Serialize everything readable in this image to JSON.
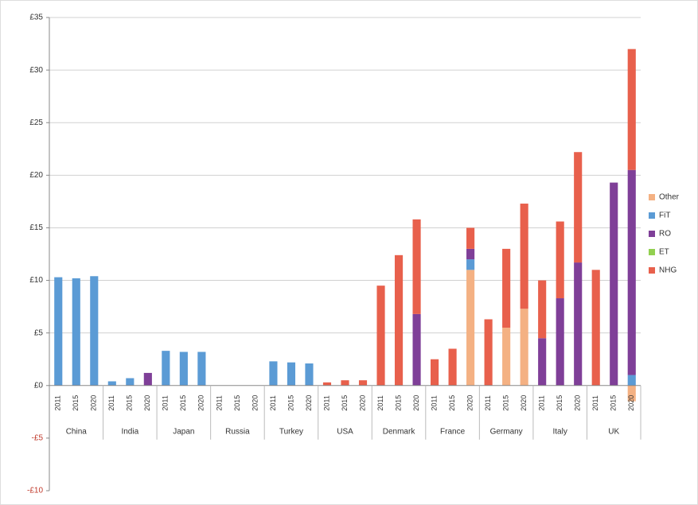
{
  "chart_data": {
    "type": "stacked-bar",
    "groups": [
      "China",
      "India",
      "Japan",
      "Russia",
      "Turkey",
      "USA",
      "Denmark",
      "France",
      "Germany",
      "Italy",
      "UK"
    ],
    "categories": [
      "2011",
      "2015",
      "2020",
      "2011",
      "2015",
      "2020",
      "2011",
      "2015",
      "2020",
      "2011",
      "2015",
      "2020",
      "2011",
      "2015",
      "2020",
      "2011",
      "2015",
      "2020",
      "2011",
      "2015",
      "2020",
      "2011",
      "2015",
      "2020",
      "2011",
      "2015",
      "2020",
      "2011",
      "2015",
      "2020",
      "2011",
      "2015",
      "2020"
    ],
    "series": [
      {
        "name": "Other",
        "color": "#f4b183",
        "values": [
          0,
          0,
          0,
          0,
          0,
          0,
          0,
          0,
          0,
          0,
          0,
          0,
          0,
          0,
          0,
          0,
          0,
          0,
          0,
          0,
          0,
          0,
          0,
          11,
          0,
          5.5,
          7.3,
          0,
          0,
          0,
          0,
          0,
          -1.5
        ]
      },
      {
        "name": "FiT",
        "color": "#5b9bd5",
        "values": [
          10.3,
          10.2,
          10.4,
          0.4,
          0.7,
          0,
          3.3,
          3.2,
          3.2,
          0,
          0,
          0,
          2.3,
          2.2,
          2.1,
          0,
          0,
          0,
          0,
          0,
          0,
          0,
          0,
          1,
          0,
          0,
          0,
          0,
          0,
          0,
          0,
          0,
          1
        ]
      },
      {
        "name": "RO",
        "color": "#7f3f98",
        "values": [
          0,
          0,
          0,
          0,
          0,
          1.2,
          0,
          0,
          0,
          0,
          0,
          0,
          0,
          0,
          0,
          0,
          0,
          0,
          0,
          0,
          6.8,
          0,
          0,
          1,
          0,
          0,
          0,
          4.5,
          8.3,
          11.7,
          0,
          19.3,
          19.5
        ]
      },
      {
        "name": "ET",
        "color": "#92d050",
        "values": [
          0,
          0,
          0,
          0,
          0,
          0,
          0,
          0,
          0,
          0,
          0,
          0,
          0,
          0,
          0,
          0,
          0,
          0,
          0,
          0,
          0,
          0,
          0,
          0,
          0,
          0,
          0,
          0,
          0,
          0,
          0,
          0,
          0
        ]
      },
      {
        "name": "NHG",
        "color": "#e8604c",
        "values": [
          0,
          0,
          0,
          0,
          0,
          0,
          0,
          0,
          0,
          0,
          0,
          0,
          0,
          0,
          0,
          0.3,
          0.5,
          0.5,
          9.5,
          12.4,
          9,
          2.5,
          3.5,
          2,
          6.3,
          7.5,
          10,
          5.5,
          7.3,
          10.5,
          11,
          0,
          11.5
        ]
      }
    ],
    "ylim": [
      -10,
      35
    ],
    "yticks": [
      {
        "value": -10,
        "label": "-£10"
      },
      {
        "value": -5,
        "label": "-£5"
      },
      {
        "value": 0,
        "label": "£0"
      },
      {
        "value": 5,
        "label": "£5"
      },
      {
        "value": 10,
        "label": "£10"
      },
      {
        "value": 15,
        "label": "£15"
      },
      {
        "value": 20,
        "label": "£20"
      },
      {
        "value": 25,
        "label": "£25"
      },
      {
        "value": 30,
        "label": "£30"
      },
      {
        "value": 35,
        "label": "£35"
      }
    ],
    "grid": true
  }
}
